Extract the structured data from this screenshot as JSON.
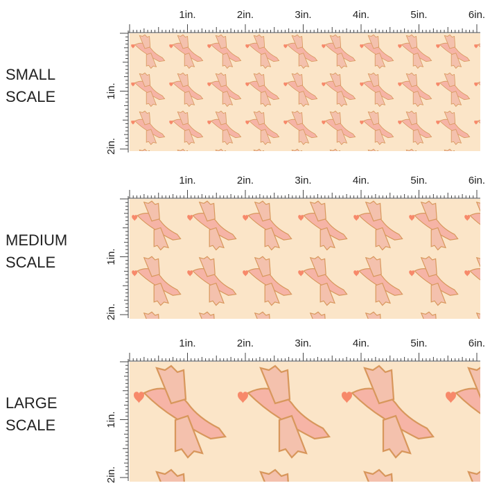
{
  "panels": [
    {
      "label": [
        "SMALL",
        "SCALE"
      ],
      "ruler_top": [
        "1in.",
        "2in.",
        "3in.",
        "4in.",
        "5in.",
        "6in."
      ],
      "ruler_side": [
        "1in.",
        "2in."
      ]
    },
    {
      "label": [
        "MEDIUM",
        "SCALE"
      ],
      "ruler_top": [
        "1in.",
        "2in.",
        "3in.",
        "4in.",
        "5in.",
        "6in."
      ],
      "ruler_side": [
        "1in.",
        "2in."
      ]
    },
    {
      "label": [
        "LARGE",
        "SCALE"
      ],
      "ruler_top": [
        "1in.",
        "2in.",
        "3in.",
        "4in.",
        "5in.",
        "6in."
      ],
      "ruler_side": [
        "1in.",
        "2in."
      ]
    }
  ]
}
